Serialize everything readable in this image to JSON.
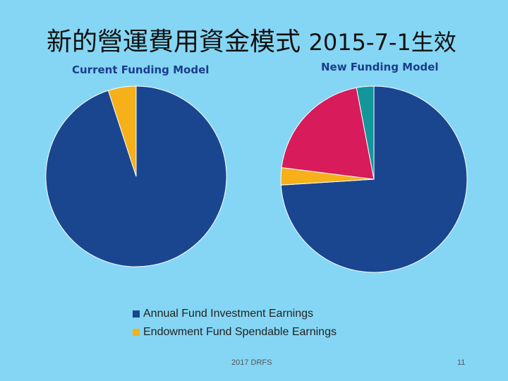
{
  "slide": {
    "title_main": "新的營運費用資金模式",
    "title_date": "2015-7-1生效",
    "footer_text": "2017 DRFS",
    "page_number": "11"
  },
  "colors": {
    "background": "#85d6f4",
    "annual": "#1a4690",
    "endowment": "#f5b01a",
    "pink": "#d81b5b",
    "teal": "#13969a"
  },
  "chart_data": [
    {
      "type": "pie",
      "title": "Current Funding Model",
      "slices": [
        {
          "label": "Annual Fund Investment Earnings",
          "value": 95,
          "color": "#1a4690"
        },
        {
          "label": "Endowment Fund Spendable Earnings",
          "value": 5,
          "color": "#f5b01a"
        }
      ]
    },
    {
      "type": "pie",
      "title": "New Funding Model",
      "slices": [
        {
          "label": "Annual Fund Investment Earnings",
          "value": 74,
          "color": "#1a4690"
        },
        {
          "label": "Endowment Fund Spendable Earnings",
          "value": 3,
          "color": "#f5b01a"
        },
        {
          "label": "",
          "value": 20,
          "color": "#d81b5b"
        },
        {
          "label": "",
          "value": 3,
          "color": "#13969a"
        }
      ]
    }
  ],
  "legend": [
    {
      "label": "Annual Fund Investment Earnings",
      "color": "#1a4690"
    },
    {
      "label": "Endowment Fund Spendable Earnings",
      "color": "#f5b01a"
    }
  ]
}
